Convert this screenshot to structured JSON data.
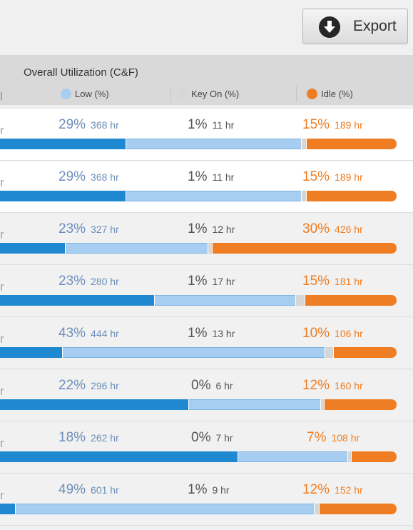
{
  "toolbar": {
    "export_label": "Export",
    "export_icon": "download-arrow-icon"
  },
  "header": {
    "title": "Overall Utilization (C&F)",
    "legend": [
      {
        "label": "Low (%)",
        "color": "#a7cdf0"
      },
      {
        "label": "Key On (%)",
        "color": "#d6d6d6"
      },
      {
        "label": "Idle (%)",
        "color": "#ef7d23"
      }
    ]
  },
  "colors": {
    "high": "#1e88d0",
    "low": "#a7cdf0",
    "key_on": "#d6d6d6",
    "idle": "#ef7d23"
  },
  "rows": [
    {
      "stub": "r",
      "low_pct": "29%",
      "low_hr": "368 hr",
      "key_pct": "1%",
      "key_hr": "11 hr",
      "idle_pct": "15%",
      "idle_hr": "189 hr"
    },
    {
      "stub": "r",
      "low_pct": "29%",
      "low_hr": "368 hr",
      "key_pct": "1%",
      "key_hr": "11 hr",
      "idle_pct": "15%",
      "idle_hr": "189 hr"
    },
    {
      "stub": "r",
      "low_pct": "23%",
      "low_hr": "327 hr",
      "key_pct": "1%",
      "key_hr": "12 hr",
      "idle_pct": "30%",
      "idle_hr": "426 hr"
    },
    {
      "stub": "r",
      "low_pct": "23%",
      "low_hr": "280 hr",
      "key_pct": "1%",
      "key_hr": "17 hr",
      "idle_pct": "15%",
      "idle_hr": "181 hr"
    },
    {
      "stub": "r",
      "low_pct": "43%",
      "low_hr": "444 hr",
      "key_pct": "1%",
      "key_hr": "13 hr",
      "idle_pct": "10%",
      "idle_hr": "106 hr"
    },
    {
      "stub": "r",
      "low_pct": "22%",
      "low_hr": "296 hr",
      "key_pct": "0%",
      "key_hr": "6 hr",
      "idle_pct": "12%",
      "idle_hr": "160 hr"
    },
    {
      "stub": "r",
      "low_pct": "18%",
      "low_hr": "262 hr",
      "key_pct": "0%",
      "key_hr": "7 hr",
      "idle_pct": "7%",
      "idle_hr": "108 hr"
    },
    {
      "stub": "r",
      "low_pct": "49%",
      "low_hr": "601 hr",
      "key_pct": "1%",
      "key_hr": "9 hr",
      "idle_pct": "12%",
      "idle_hr": "152 hr"
    }
  ]
}
